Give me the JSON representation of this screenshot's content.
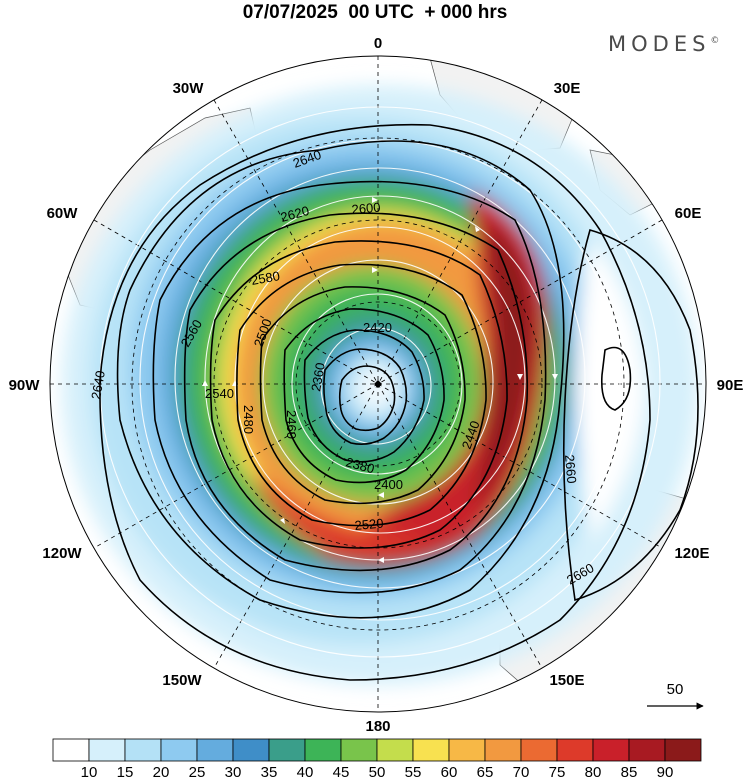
{
  "title": "07/07/2025  00 UTC  + 000 hrs",
  "brand": "MODES",
  "brand_mark": "©",
  "map": {
    "projection": "polar-stereographic-south",
    "center_marker": "south-pole-dot",
    "longitude_labels": [
      "0",
      "30E",
      "60E",
      "90E",
      "120E",
      "150E",
      "180",
      "150W",
      "120W",
      "90W",
      "60W",
      "30W"
    ],
    "contour_labels": [
      "2640",
      "2620",
      "2600",
      "2580",
      "2560",
      "2540",
      "2520",
      "2500",
      "2480",
      "2460",
      "2440",
      "2420",
      "2400",
      "2380",
      "2360",
      "2640",
      "2660",
      "2660"
    ],
    "reference_vector_label": "50"
  },
  "colorbar": {
    "labels": [
      "10",
      "15",
      "20",
      "25",
      "30",
      "35",
      "40",
      "45",
      "50",
      "55",
      "60",
      "65",
      "70",
      "75",
      "80",
      "85",
      "90"
    ],
    "colors": [
      "#ffffff",
      "#d6f0fb",
      "#b4e1f6",
      "#8ecaf0",
      "#64acde",
      "#3f8ec8",
      "#3a9e8a",
      "#3db457",
      "#79c44b",
      "#c4dd4c",
      "#f8e150",
      "#f7b846",
      "#f29940",
      "#eb6a32",
      "#dd3a2a",
      "#c9202a",
      "#a81a22",
      "#8b1a1a"
    ]
  }
}
